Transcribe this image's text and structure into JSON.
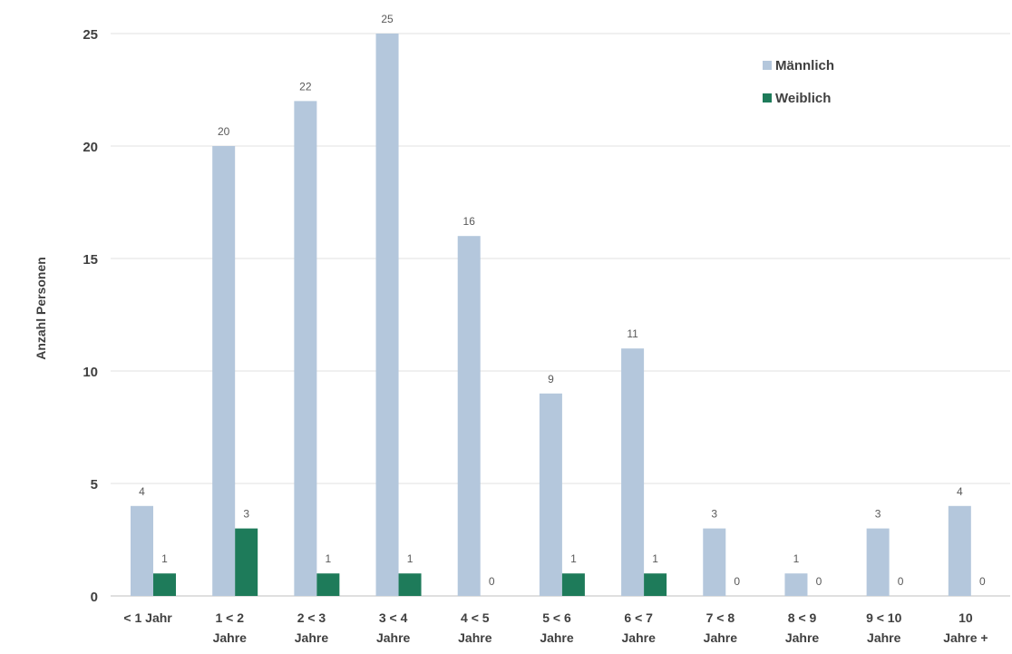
{
  "chart_data": {
    "type": "bar",
    "title": "",
    "xlabel": "",
    "ylabel": "Anzahl Personen",
    "ylim": [
      0,
      25
    ],
    "yticks": [
      0,
      5,
      10,
      15,
      20,
      25
    ],
    "grid": true,
    "legend_position": "top-right",
    "categories": [
      [
        "< 1 Jahr"
      ],
      [
        "1 < 2",
        "Jahre"
      ],
      [
        "2 < 3",
        "Jahre"
      ],
      [
        "3 < 4",
        "Jahre"
      ],
      [
        "4 < 5",
        "Jahre"
      ],
      [
        "5 < 6",
        "Jahre"
      ],
      [
        "6 < 7",
        "Jahre"
      ],
      [
        "7 < 8",
        "Jahre"
      ],
      [
        "8 < 9",
        "Jahre"
      ],
      [
        "9 < 10",
        "Jahre"
      ],
      [
        "10",
        "Jahre +"
      ]
    ],
    "series": [
      {
        "name": "Männlich",
        "color": "#b4c7dc",
        "values": [
          4,
          20,
          22,
          25,
          16,
          9,
          11,
          3,
          1,
          3,
          4
        ]
      },
      {
        "name": "Weiblich",
        "color": "#1e7b5a",
        "values": [
          1,
          3,
          1,
          1,
          0,
          1,
          1,
          0,
          0,
          0,
          0
        ]
      }
    ]
  }
}
